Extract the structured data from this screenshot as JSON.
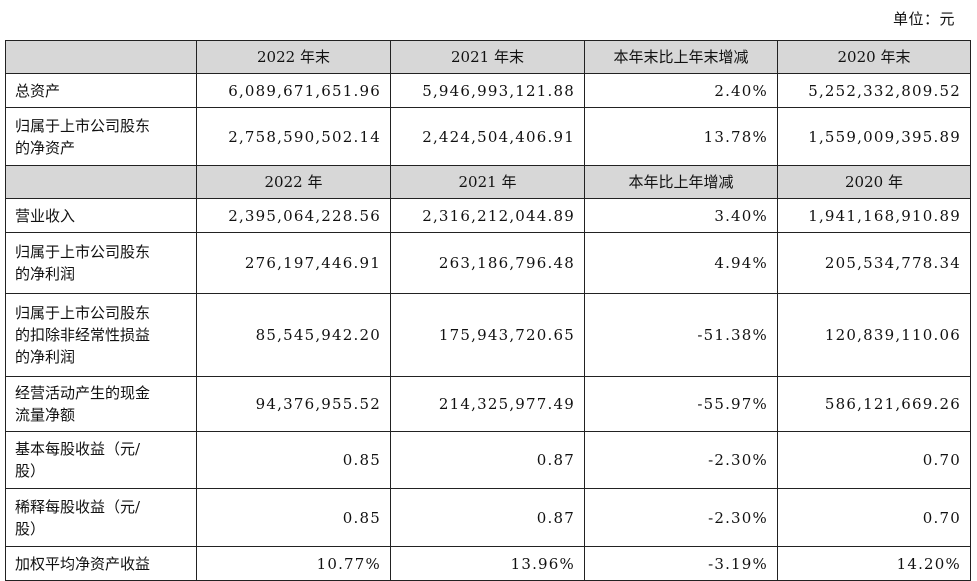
{
  "unit_label": "单位：元",
  "header1": [
    "",
    "2022 年末",
    "2021 年末",
    "本年末比上年末增减",
    "2020 年末"
  ],
  "header2": [
    "",
    "2022 年",
    "2021 年",
    "本年比上年增减",
    "2020 年"
  ],
  "rows": [
    {
      "label_lines": [
        "总资产"
      ],
      "values": [
        "6,089,671,651.96",
        "5,946,993,121.88",
        "2.40%",
        "5,252,332,809.52"
      ]
    },
    {
      "label_lines": [
        "归属于上市公司股东",
        "的净资产"
      ],
      "values": [
        "2,758,590,502.14",
        "2,424,504,406.91",
        "13.78%",
        "1,559,009,395.89"
      ]
    },
    {
      "label_lines": [
        "营业收入"
      ],
      "values": [
        "2,395,064,228.56",
        "2,316,212,044.89",
        "3.40%",
        "1,941,168,910.89"
      ]
    },
    {
      "label_lines": [
        "归属于上市公司股东",
        "的净利润"
      ],
      "values": [
        "276,197,446.91",
        "263,186,796.48",
        "4.94%",
        "205,534,778.34"
      ]
    },
    {
      "label_lines": [
        "归属于上市公司股东",
        "的扣除非经常性损益",
        "的净利润"
      ],
      "values": [
        "85,545,942.20",
        "175,943,720.65",
        "-51.38%",
        "120,839,110.06"
      ]
    },
    {
      "label_lines": [
        "经营活动产生的现金",
        "流量净额"
      ],
      "values": [
        "94,376,955.52",
        "214,325,977.49",
        "-55.97%",
        "586,121,669.26"
      ]
    },
    {
      "label_lines": [
        "基本每股收益（元/",
        "股）"
      ],
      "values": [
        "0.85",
        "0.87",
        "-2.30%",
        "0.70"
      ]
    },
    {
      "label_lines": [
        "稀释每股收益（元/",
        "股）"
      ],
      "values": [
        "0.85",
        "0.87",
        "-2.30%",
        "0.70"
      ]
    },
    {
      "label_lines": [
        "加权平均净资产收益"
      ],
      "values": [
        "10.77%",
        "13.96%",
        "-3.19%",
        "14.20%"
      ]
    }
  ]
}
